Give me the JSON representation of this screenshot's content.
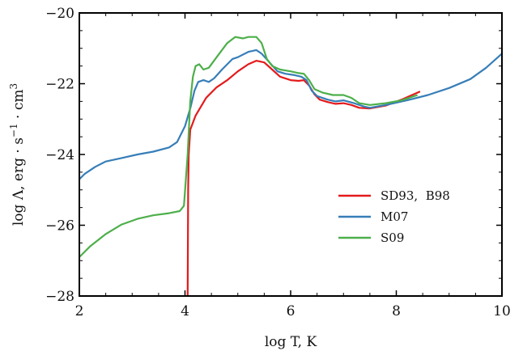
{
  "chart_data": {
    "type": "line",
    "xlabel": "log T, K",
    "ylabel_parts": {
      "base": "log Λ, erg · s",
      "sup1": "−1",
      "mid": " · cm",
      "sup2": "3"
    },
    "xlim": [
      2,
      10
    ],
    "ylim": [
      -28,
      -20
    ],
    "xticks": [
      2,
      4,
      6,
      8,
      10
    ],
    "xtick_labels": [
      "2",
      "4",
      "6",
      "8",
      "10"
    ],
    "yticks": [
      -28,
      -26,
      -24,
      -22,
      -20
    ],
    "ytick_labels": [
      "−28",
      "−26",
      "−24",
      "−22",
      "−20"
    ],
    "grid": false,
    "legend_position": "right",
    "series": [
      {
        "name": "SD93,  B98",
        "color": "#e41a1c",
        "points": [
          [
            4.05,
            -28
          ],
          [
            4.06,
            -25.0
          ],
          [
            4.07,
            -24.0
          ],
          [
            4.1,
            -23.3
          ],
          [
            4.2,
            -22.9
          ],
          [
            4.4,
            -22.4
          ],
          [
            4.6,
            -22.1
          ],
          [
            4.8,
            -21.9
          ],
          [
            5.0,
            -21.65
          ],
          [
            5.2,
            -21.45
          ],
          [
            5.35,
            -21.35
          ],
          [
            5.5,
            -21.4
          ],
          [
            5.65,
            -21.6
          ],
          [
            5.8,
            -21.8
          ],
          [
            6.0,
            -21.9
          ],
          [
            6.15,
            -21.92
          ],
          [
            6.25,
            -21.9
          ],
          [
            6.35,
            -22.05
          ],
          [
            6.45,
            -22.3
          ],
          [
            6.55,
            -22.45
          ],
          [
            6.7,
            -22.52
          ],
          [
            6.85,
            -22.57
          ],
          [
            7.0,
            -22.55
          ],
          [
            7.15,
            -22.6
          ],
          [
            7.3,
            -22.68
          ],
          [
            7.5,
            -22.7
          ],
          [
            7.8,
            -22.62
          ],
          [
            8.1,
            -22.45
          ],
          [
            8.45,
            -22.22
          ]
        ]
      },
      {
        "name": "M07",
        "color": "#377eb8",
        "points": [
          [
            2.0,
            -24.7
          ],
          [
            2.1,
            -24.55
          ],
          [
            2.3,
            -24.35
          ],
          [
            2.5,
            -24.2
          ],
          [
            2.8,
            -24.1
          ],
          [
            3.1,
            -24.0
          ],
          [
            3.4,
            -23.92
          ],
          [
            3.7,
            -23.8
          ],
          [
            3.85,
            -23.65
          ],
          [
            4.0,
            -23.2
          ],
          [
            4.1,
            -22.7
          ],
          [
            4.18,
            -22.2
          ],
          [
            4.25,
            -21.95
          ],
          [
            4.35,
            -21.9
          ],
          [
            4.45,
            -21.95
          ],
          [
            4.55,
            -21.85
          ],
          [
            4.7,
            -21.6
          ],
          [
            4.9,
            -21.3
          ],
          [
            5.0,
            -21.25
          ],
          [
            5.2,
            -21.1
          ],
          [
            5.35,
            -21.05
          ],
          [
            5.45,
            -21.15
          ],
          [
            5.6,
            -21.4
          ],
          [
            5.75,
            -21.65
          ],
          [
            5.9,
            -21.72
          ],
          [
            6.05,
            -21.75
          ],
          [
            6.2,
            -21.8
          ],
          [
            6.3,
            -21.9
          ],
          [
            6.4,
            -22.2
          ],
          [
            6.5,
            -22.35
          ],
          [
            6.7,
            -22.45
          ],
          [
            6.85,
            -22.5
          ],
          [
            7.0,
            -22.47
          ],
          [
            7.2,
            -22.55
          ],
          [
            7.4,
            -22.65
          ],
          [
            7.5,
            -22.68
          ],
          [
            7.8,
            -22.6
          ],
          [
            8.2,
            -22.47
          ],
          [
            8.6,
            -22.32
          ],
          [
            9.0,
            -22.12
          ],
          [
            9.4,
            -21.87
          ],
          [
            9.7,
            -21.55
          ],
          [
            10.0,
            -21.15
          ]
        ]
      },
      {
        "name": "S09",
        "color": "#4daf4a",
        "points": [
          [
            2.0,
            -26.9
          ],
          [
            2.2,
            -26.6
          ],
          [
            2.5,
            -26.25
          ],
          [
            2.8,
            -25.98
          ],
          [
            3.1,
            -25.82
          ],
          [
            3.4,
            -25.72
          ],
          [
            3.7,
            -25.66
          ],
          [
            3.9,
            -25.6
          ],
          [
            3.98,
            -25.45
          ],
          [
            4.05,
            -24.0
          ],
          [
            4.1,
            -22.5
          ],
          [
            4.15,
            -21.8
          ],
          [
            4.2,
            -21.5
          ],
          [
            4.27,
            -21.45
          ],
          [
            4.35,
            -21.6
          ],
          [
            4.45,
            -21.55
          ],
          [
            4.6,
            -21.25
          ],
          [
            4.8,
            -20.85
          ],
          [
            4.95,
            -20.68
          ],
          [
            5.1,
            -20.72
          ],
          [
            5.2,
            -20.68
          ],
          [
            5.35,
            -20.68
          ],
          [
            5.45,
            -20.85
          ],
          [
            5.55,
            -21.3
          ],
          [
            5.65,
            -21.5
          ],
          [
            5.8,
            -21.6
          ],
          [
            6.0,
            -21.65
          ],
          [
            6.15,
            -21.7
          ],
          [
            6.25,
            -21.72
          ],
          [
            6.35,
            -21.9
          ],
          [
            6.45,
            -22.15
          ],
          [
            6.6,
            -22.25
          ],
          [
            6.8,
            -22.32
          ],
          [
            7.0,
            -22.32
          ],
          [
            7.15,
            -22.4
          ],
          [
            7.3,
            -22.55
          ],
          [
            7.5,
            -22.6
          ],
          [
            7.8,
            -22.55
          ],
          [
            8.1,
            -22.47
          ],
          [
            8.4,
            -22.32
          ]
        ]
      }
    ]
  }
}
